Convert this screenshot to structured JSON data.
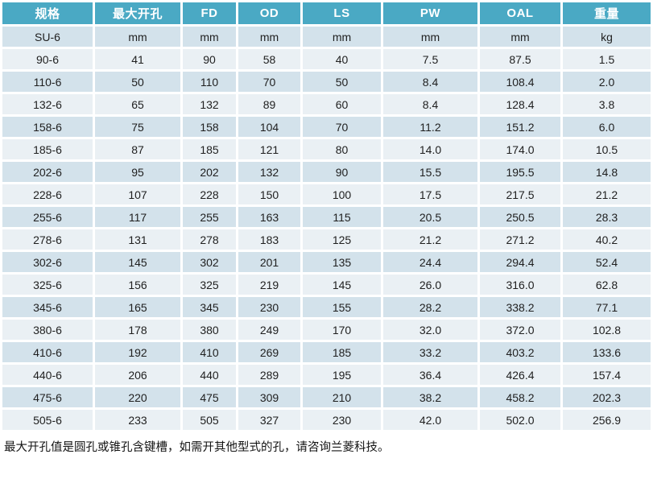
{
  "colors": {
    "header_bg": "#4AA9C4",
    "header_text": "#FFFFFF",
    "row_light": "#EAF0F4",
    "row_dark": "#D3E2EB",
    "text": "#1F1F1F"
  },
  "table": {
    "headers": [
      "规格",
      "最大开孔",
      "FD",
      "OD",
      "LS",
      "PW",
      "OAL",
      "重量"
    ],
    "unit_row": [
      "SU-6",
      "mm",
      "mm",
      "mm",
      "mm",
      "mm",
      "mm",
      "kg"
    ],
    "rows": [
      [
        "90-6",
        "41",
        "90",
        "58",
        "40",
        "7.5",
        "87.5",
        "1.5"
      ],
      [
        "110-6",
        "50",
        "110",
        "70",
        "50",
        "8.4",
        "108.4",
        "2.0"
      ],
      [
        "132-6",
        "65",
        "132",
        "89",
        "60",
        "8.4",
        "128.4",
        "3.8"
      ],
      [
        "158-6",
        "75",
        "158",
        "104",
        "70",
        "11.2",
        "151.2",
        "6.0"
      ],
      [
        "185-6",
        "87",
        "185",
        "121",
        "80",
        "14.0",
        "174.0",
        "10.5"
      ],
      [
        "202-6",
        "95",
        "202",
        "132",
        "90",
        "15.5",
        "195.5",
        "14.8"
      ],
      [
        "228-6",
        "107",
        "228",
        "150",
        "100",
        "17.5",
        "217.5",
        "21.2"
      ],
      [
        "255-6",
        "117",
        "255",
        "163",
        "115",
        "20.5",
        "250.5",
        "28.3"
      ],
      [
        "278-6",
        "131",
        "278",
        "183",
        "125",
        "21.2",
        "271.2",
        "40.2"
      ],
      [
        "302-6",
        "145",
        "302",
        "201",
        "135",
        "24.4",
        "294.4",
        "52.4"
      ],
      [
        "325-6",
        "156",
        "325",
        "219",
        "145",
        "26.0",
        "316.0",
        "62.8"
      ],
      [
        "345-6",
        "165",
        "345",
        "230",
        "155",
        "28.2",
        "338.2",
        "77.1"
      ],
      [
        "380-6",
        "178",
        "380",
        "249",
        "170",
        "32.0",
        "372.0",
        "102.8"
      ],
      [
        "410-6",
        "192",
        "410",
        "269",
        "185",
        "33.2",
        "403.2",
        "133.6"
      ],
      [
        "440-6",
        "206",
        "440",
        "289",
        "195",
        "36.4",
        "426.4",
        "157.4"
      ],
      [
        "475-6",
        "220",
        "475",
        "309",
        "210",
        "38.2",
        "458.2",
        "202.3"
      ],
      [
        "505-6",
        "233",
        "505",
        "327",
        "230",
        "42.0",
        "502.0",
        "256.9"
      ]
    ]
  },
  "footer_note": "最大开孔值是圆孔或锥孔含键槽，如需开其他型式的孔，请咨询兰菱科技。"
}
